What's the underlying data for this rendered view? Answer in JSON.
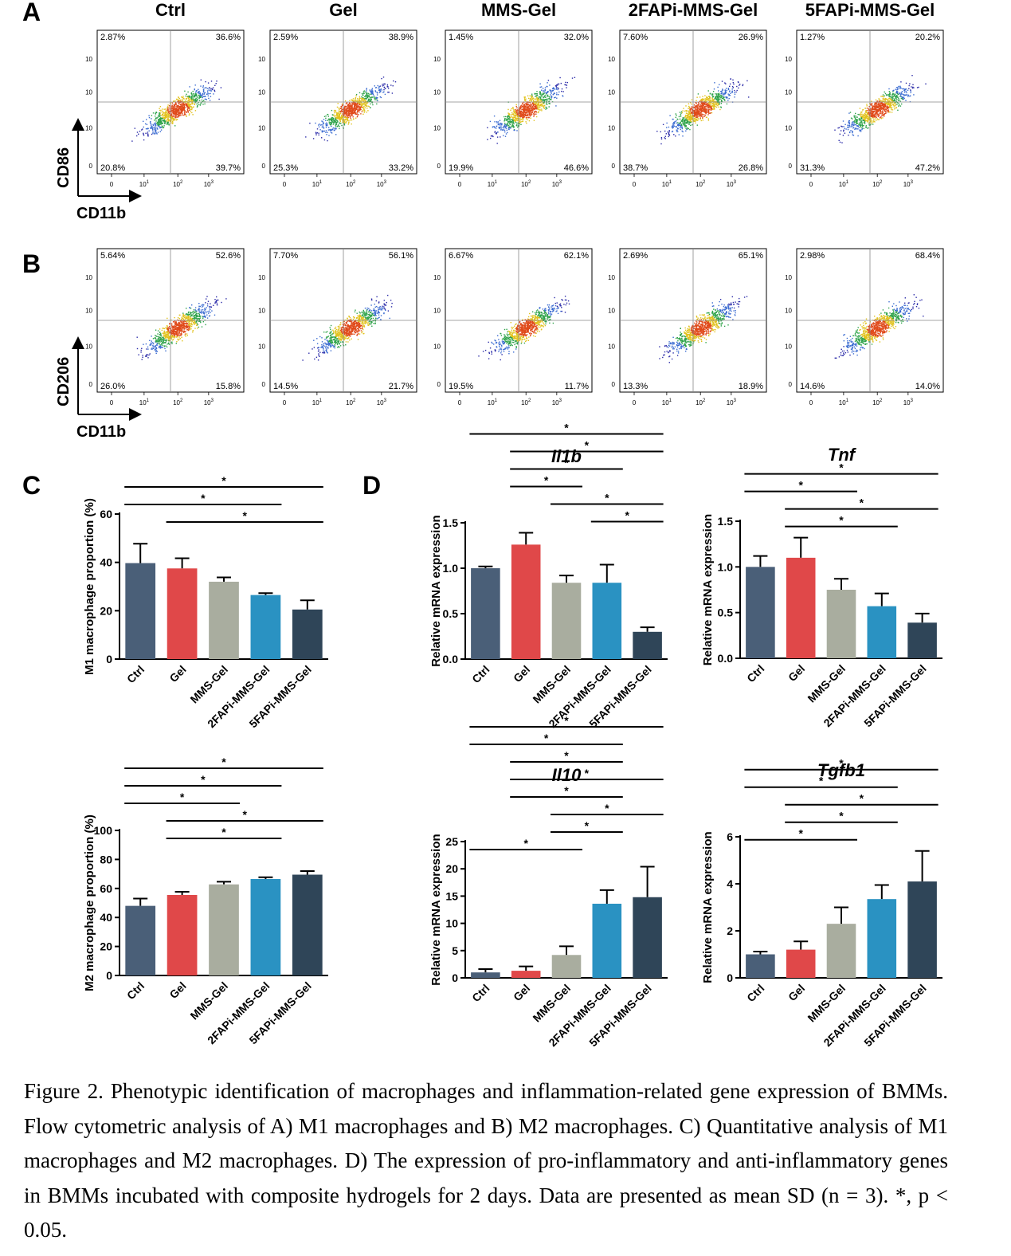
{
  "panel_letters": [
    "A",
    "B",
    "C",
    "D"
  ],
  "groups": [
    "Ctrl",
    "Gel",
    "MMS-Gel",
    "2FAPi-MMS-Gel",
    "5FAPi-MMS-Gel"
  ],
  "colors": [
    "#4a5f78",
    "#e04849",
    "#a9ad9f",
    "#2a92c2",
    "#2f4558"
  ],
  "flow_tick_labels": [
    "0",
    "10",
    "10",
    "10"
  ],
  "flow_tick_exponents": [
    "1",
    "2",
    "3"
  ],
  "flow_A": {
    "y_label": "CD86",
    "x_label": "CD11b",
    "quadrants": [
      {
        "ul": "2.87%",
        "ur": "36.6%",
        "ll": "20.8%",
        "lr": "39.7%"
      },
      {
        "ul": "2.59%",
        "ur": "38.9%",
        "ll": "25.3%",
        "lr": "33.2%"
      },
      {
        "ul": "1.45%",
        "ur": "32.0%",
        "ll": "19.9%",
        "lr": "46.6%"
      },
      {
        "ul": "7.60%",
        "ur": "26.9%",
        "ll": "38.7%",
        "lr": "26.8%"
      },
      {
        "ul": "1.27%",
        "ur": "20.2%",
        "ll": "31.3%",
        "lr": "47.2%"
      }
    ]
  },
  "flow_B": {
    "y_label": "CD206",
    "x_label": "CD11b",
    "quadrants": [
      {
        "ul": "5.64%",
        "ur": "52.6%",
        "ll": "26.0%",
        "lr": "15.8%"
      },
      {
        "ul": "7.70%",
        "ur": "56.1%",
        "ll": "14.5%",
        "lr": "21.7%"
      },
      {
        "ul": "6.67%",
        "ur": "62.1%",
        "ll": "19.5%",
        "lr": "11.7%"
      },
      {
        "ul": "2.69%",
        "ur": "65.1%",
        "ll": "13.3%",
        "lr": "18.9%"
      },
      {
        "ul": "2.98%",
        "ur": "68.4%",
        "ll": "14.6%",
        "lr": "14.0%"
      }
    ]
  },
  "chart_data": [
    {
      "type": "bar",
      "title": "",
      "ylabel": "M1 macrophage proportion (%)",
      "categories": [
        "Ctrl",
        "Gel",
        "MMS-Gel",
        "2FAPi-MMS-Gel",
        "5FAPi-MMS-Gel"
      ],
      "values": [
        39.7,
        37.5,
        32.0,
        26.5,
        20.5
      ],
      "errors": [
        8.0,
        4.2,
        1.8,
        0.8,
        3.8
      ],
      "ylim": [
        0,
        60
      ],
      "yticks": [
        "0",
        "20",
        "40",
        "60"
      ],
      "significance": [
        {
          "from": 0,
          "to": 4,
          "label": "*"
        },
        {
          "from": 0,
          "to": 3,
          "label": "*"
        },
        {
          "from": 1,
          "to": 4,
          "label": "*"
        }
      ]
    },
    {
      "type": "bar",
      "title": "",
      "ylabel": "M2 macrophage proportion (%)",
      "categories": [
        "Ctrl",
        "Gel",
        "MMS-Gel",
        "2FAPi-MMS-Gel",
        "5FAPi-MMS-Gel"
      ],
      "values": [
        48.0,
        55.5,
        62.8,
        66.5,
        69.5
      ],
      "errors": [
        5.0,
        2.2,
        1.8,
        1.2,
        2.5
      ],
      "ylim": [
        0,
        100
      ],
      "yticks": [
        "0",
        "20",
        "40",
        "60",
        "80",
        "100"
      ],
      "significance": [
        {
          "from": 0,
          "to": 4,
          "label": "*"
        },
        {
          "from": 0,
          "to": 3,
          "label": "*"
        },
        {
          "from": 0,
          "to": 2,
          "label": "*"
        },
        {
          "from": 1,
          "to": 4,
          "label": "*"
        },
        {
          "from": 1,
          "to": 3,
          "label": "*"
        }
      ]
    },
    {
      "type": "bar",
      "title": "Il1b",
      "ylabel": "Relative mRNA expression",
      "categories": [
        "Ctrl",
        "Gel",
        "MMS-Gel",
        "2FAPi-MMS-Gel",
        "5FAPi-MMS-Gel"
      ],
      "values": [
        1.0,
        1.26,
        0.84,
        0.84,
        0.3
      ],
      "errors": [
        0.02,
        0.13,
        0.08,
        0.2,
        0.05
      ],
      "ylim": [
        0,
        1.5
      ],
      "yticks": [
        "0.0",
        "0.5",
        "1.0",
        "1.5"
      ],
      "significance": [
        {
          "from": 0,
          "to": 4,
          "label": "*"
        },
        {
          "from": 1,
          "to": 4,
          "label": "*"
        },
        {
          "from": 1,
          "to": 3,
          "label": "*"
        },
        {
          "from": 1,
          "to": 2,
          "label": "*"
        },
        {
          "from": 2,
          "to": 4,
          "label": "*"
        },
        {
          "from": 3,
          "to": 4,
          "label": "*"
        }
      ]
    },
    {
      "type": "bar",
      "title": "Tnf",
      "ylabel": "Relative mRNA expression",
      "categories": [
        "Ctrl",
        "Gel",
        "MMS-Gel",
        "2FAPi-MMS-Gel",
        "5FAPi-MMS-Gel"
      ],
      "values": [
        1.0,
        1.1,
        0.75,
        0.57,
        0.39
      ],
      "errors": [
        0.12,
        0.22,
        0.12,
        0.14,
        0.1
      ],
      "ylim": [
        0,
        1.5
      ],
      "yticks": [
        "0.0",
        "0.5",
        "1.0",
        "1.5"
      ],
      "significance": [
        {
          "from": 0,
          "to": 4,
          "label": "*"
        },
        {
          "from": 0,
          "to": 2,
          "label": "*"
        },
        {
          "from": 1,
          "to": 4,
          "label": "*"
        },
        {
          "from": 1,
          "to": 3,
          "label": "*"
        }
      ]
    },
    {
      "type": "bar",
      "title": "Il10",
      "ylabel": "Relative mRNA expression",
      "categories": [
        "Ctrl",
        "Gel",
        "MMS-Gel",
        "2FAPi-MMS-Gel",
        "5FAPi-MMS-Gel"
      ],
      "values": [
        1.0,
        1.3,
        4.2,
        13.6,
        14.8
      ],
      "errors": [
        0.6,
        0.8,
        1.6,
        2.5,
        5.6
      ],
      "ylim": [
        0,
        25
      ],
      "yticks": [
        "0",
        "5",
        "10",
        "15",
        "20",
        "25"
      ],
      "significance": [
        {
          "from": 0,
          "to": 4,
          "label": "*"
        },
        {
          "from": 0,
          "to": 3,
          "label": "*"
        },
        {
          "from": 1,
          "to": 3,
          "label": "*"
        },
        {
          "from": 1,
          "to": 4,
          "label": "*"
        },
        {
          "from": 1,
          "to": 3,
          "label": "*"
        },
        {
          "from": 2,
          "to": 4,
          "label": "*"
        },
        {
          "from": 2,
          "to": 3,
          "label": "*"
        },
        {
          "from": 0,
          "to": 2,
          "label": "*"
        }
      ]
    },
    {
      "type": "bar",
      "title": "Tgfb1",
      "ylabel": "Relative mRNA expression",
      "categories": [
        "Ctrl",
        "Gel",
        "MMS-Gel",
        "2FAPi-MMS-Gel",
        "5FAPi-MMS-Gel"
      ],
      "values": [
        1.0,
        1.2,
        2.3,
        3.35,
        4.1
      ],
      "errors": [
        0.12,
        0.35,
        0.7,
        0.6,
        1.3
      ],
      "ylim": [
        0,
        6
      ],
      "yticks": [
        "0",
        "2",
        "4",
        "6"
      ],
      "significance": [
        {
          "from": 0,
          "to": 4,
          "label": "*"
        },
        {
          "from": 0,
          "to": 3,
          "label": "*"
        },
        {
          "from": 1,
          "to": 4,
          "label": "*"
        },
        {
          "from": 1,
          "to": 3,
          "label": "*"
        },
        {
          "from": 0,
          "to": 2,
          "label": "*"
        }
      ]
    }
  ],
  "caption": "Figure 2. Phenotypic identification of macrophages and inflammation-related gene expression of BMMs. Flow cytometric analysis of A) M1 macrophages and B) M2 macrophages. C) Quantitative analysis of M1 macrophages and M2 macrophages. D) The expression of pro-inflammatory and anti-inflammatory genes in BMMs incubated with composite hydrogels for 2 days. Data are presented as mean SD (n = 3). *, p < 0.05."
}
